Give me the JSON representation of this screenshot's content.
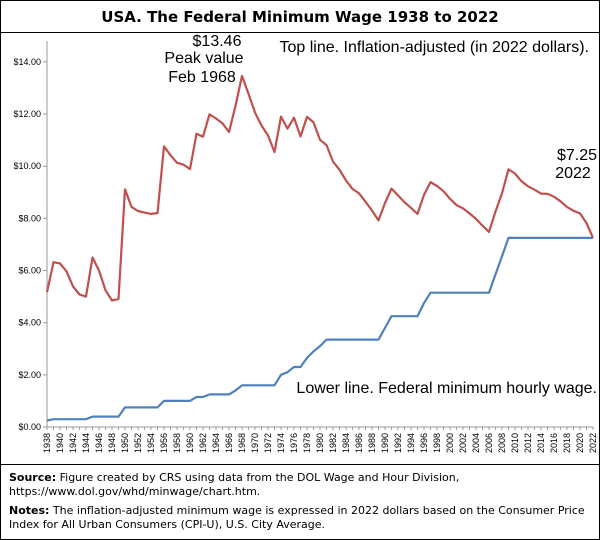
{
  "title": "USA. The Federal Minimum Wage 1938 to 2022",
  "chart_data": {
    "type": "line",
    "x": [
      1938,
      1939,
      1940,
      1941,
      1942,
      1943,
      1944,
      1945,
      1946,
      1947,
      1948,
      1949,
      1950,
      1951,
      1952,
      1953,
      1954,
      1955,
      1956,
      1957,
      1958,
      1959,
      1960,
      1961,
      1962,
      1963,
      1964,
      1965,
      1966,
      1967,
      1968,
      1969,
      1970,
      1971,
      1972,
      1973,
      1974,
      1975,
      1976,
      1977,
      1978,
      1979,
      1980,
      1981,
      1982,
      1983,
      1984,
      1985,
      1986,
      1987,
      1988,
      1989,
      1990,
      1991,
      1992,
      1993,
      1994,
      1995,
      1996,
      1997,
      1998,
      1999,
      2000,
      2001,
      2002,
      2003,
      2004,
      2005,
      2006,
      2007,
      2008,
      2009,
      2010,
      2011,
      2012,
      2013,
      2014,
      2015,
      2016,
      2017,
      2018,
      2019,
      2020,
      2021,
      2022
    ],
    "series": [
      {
        "name": "Top line. Inflation-adjusted (in 2022 dollars).",
        "color": "#c0504d",
        "values": [
          5.17,
          6.32,
          6.27,
          5.97,
          5.39,
          5.08,
          5.0,
          6.5,
          6.0,
          5.24,
          4.85,
          4.91,
          9.11,
          8.44,
          8.28,
          8.22,
          8.17,
          8.2,
          10.76,
          10.42,
          10.13,
          10.06,
          9.89,
          11.24,
          11.13,
          11.99,
          11.83,
          11.64,
          11.31,
          12.31,
          13.46,
          12.77,
          12.06,
          11.56,
          11.18,
          10.54,
          11.9,
          11.44,
          11.86,
          11.14,
          11.89,
          11.68,
          11.01,
          10.81,
          10.18,
          9.86,
          9.45,
          9.13,
          8.96,
          8.64,
          8.3,
          7.92,
          8.59,
          9.14,
          8.88,
          8.62,
          8.4,
          8.17,
          8.9,
          9.39,
          9.24,
          9.04,
          8.75,
          8.51,
          8.38,
          8.19,
          7.98,
          7.72,
          7.48,
          8.26,
          8.96,
          9.88,
          9.72,
          9.42,
          9.23,
          9.1,
          8.95,
          8.94,
          8.83,
          8.65,
          8.44,
          8.29,
          8.19,
          7.82,
          7.25
        ]
      },
      {
        "name": "Lower line. Federal minimum hourly wage.",
        "color": "#4f81bd",
        "values": [
          0.25,
          0.3,
          0.3,
          0.3,
          0.3,
          0.3,
          0.3,
          0.4,
          0.4,
          0.4,
          0.4,
          0.4,
          0.75,
          0.75,
          0.75,
          0.75,
          0.75,
          0.75,
          1.0,
          1.0,
          1.0,
          1.0,
          1.0,
          1.15,
          1.15,
          1.25,
          1.25,
          1.25,
          1.25,
          1.4,
          1.6,
          1.6,
          1.6,
          1.6,
          1.6,
          1.6,
          2.0,
          2.1,
          2.3,
          2.3,
          2.65,
          2.9,
          3.1,
          3.35,
          3.35,
          3.35,
          3.35,
          3.35,
          3.35,
          3.35,
          3.35,
          3.35,
          3.8,
          4.25,
          4.25,
          4.25,
          4.25,
          4.25,
          4.75,
          5.15,
          5.15,
          5.15,
          5.15,
          5.15,
          5.15,
          5.15,
          5.15,
          5.15,
          5.15,
          5.85,
          6.55,
          7.25,
          7.25,
          7.25,
          7.25,
          7.25,
          7.25,
          7.25,
          7.25,
          7.25,
          7.25,
          7.25,
          7.25,
          7.25,
          7.25
        ]
      }
    ],
    "x_tick_labels": [
      "1938",
      "1940",
      "1942",
      "1944",
      "1946",
      "1948",
      "1950",
      "1952",
      "1954",
      "1956",
      "1958",
      "1960",
      "1962",
      "1964",
      "1966",
      "1968",
      "1970",
      "1972",
      "1974",
      "1976",
      "1978",
      "1980",
      "1982",
      "1984",
      "1986",
      "1988",
      "1990",
      "1992",
      "1994",
      "1996",
      "1998",
      "2000",
      "2002",
      "2004",
      "2006",
      "2008",
      "2010",
      "2012",
      "2014",
      "2016",
      "2018",
      "2020",
      "2022"
    ],
    "y_tick_labels": [
      "$0.00",
      "$2.00",
      "$4.00",
      "$6.00",
      "$8.00",
      "$10.00",
      "$12.00",
      "$14.00"
    ],
    "ylim": [
      0,
      14.8
    ],
    "grid": false,
    "annotations": {
      "peak_value": "$13.46",
      "peak_line1": "Peak value",
      "peak_line2": "Feb 1968",
      "top_line_label": "Top line. Inflation-adjusted (in 2022 dollars).",
      "end_value": "$7.25",
      "end_year": "2022",
      "lower_line_label": "Lower line. Federal minimum hourly wage."
    }
  },
  "notes": {
    "source_label": "Source:",
    "source_text": " Figure created by CRS using data from the DOL Wage and Hour Division, https://www.dol.gov/whd/minwage/chart.htm.",
    "notes_label": "Notes:",
    "notes_text": " The inflation-adjusted minimum wage is expressed in 2022 dollars based on the Consumer Price Index for All Urban Consumers (CPI-U), U.S. City Average."
  }
}
